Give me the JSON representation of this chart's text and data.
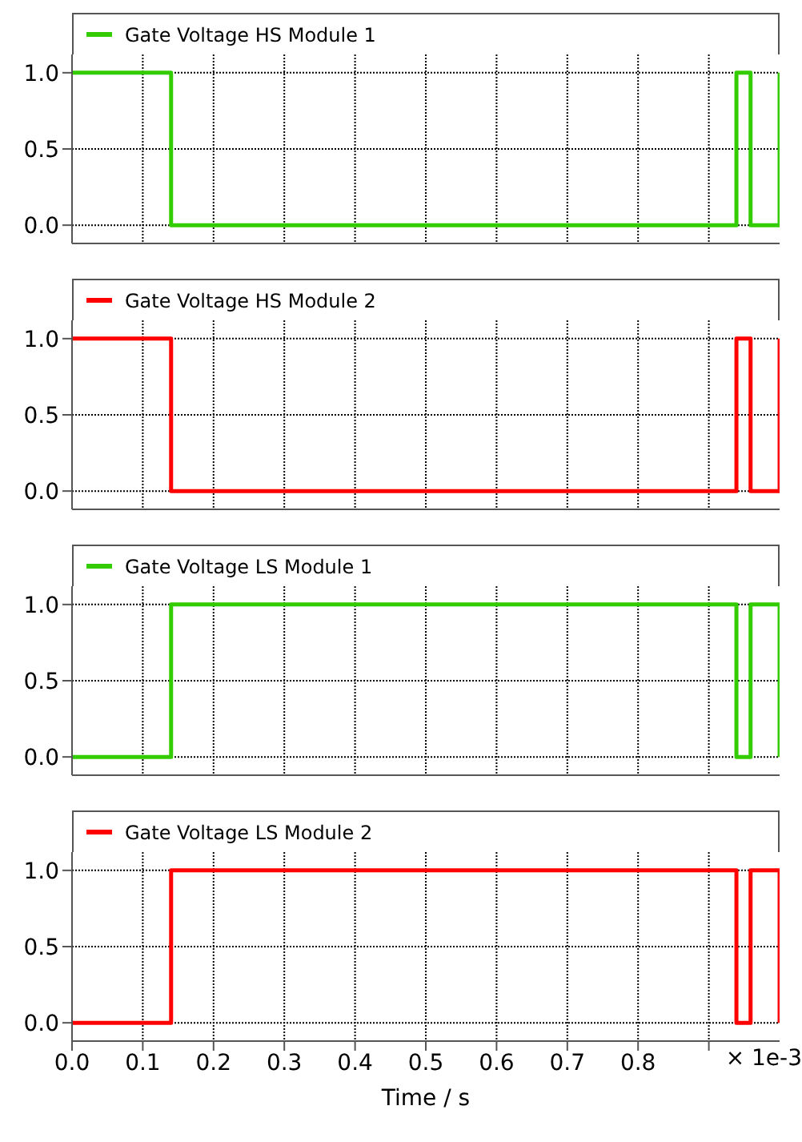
{
  "chart_data": [
    {
      "type": "step",
      "x": [
        0,
        0.14,
        0.939,
        0.959,
        1.0
      ],
      "series": [
        {
          "name": "Gate Voltage HS Module 1",
          "color": "#33cc00",
          "values": [
            1,
            0,
            1,
            0,
            1
          ]
        }
      ],
      "xlim": [
        0,
        1.0
      ],
      "xticks": [
        {
          "value": 0,
          "label": null
        },
        {
          "value": 0.1,
          "label": null
        },
        {
          "value": 0.2,
          "label": null
        },
        {
          "value": 0.3,
          "label": null
        },
        {
          "value": 0.4,
          "label": null
        },
        {
          "value": 0.5,
          "label": null
        },
        {
          "value": 0.6,
          "label": null
        },
        {
          "value": 0.7,
          "label": null
        },
        {
          "value": 0.8,
          "label": null
        },
        {
          "value": 0.9,
          "label": null
        }
      ],
      "ylim": [
        -0.12,
        1.12
      ],
      "yticks": [
        {
          "value": 0,
          "label": "0.0"
        },
        {
          "value": 0.5,
          "label": "0.5"
        },
        {
          "value": 1,
          "label": "1.0"
        }
      ],
      "grid": true,
      "legend": "top",
      "tick_labels": "y"
    },
    {
      "type": "step",
      "x": [
        0,
        0.14,
        0.939,
        0.959,
        1.0
      ],
      "series": [
        {
          "name": "Gate Voltage HS Module 2",
          "color": "#ff0000",
          "values": [
            1,
            0,
            1,
            0,
            1
          ]
        }
      ],
      "xlim": [
        0,
        1.0
      ],
      "xticks": [
        {
          "value": 0,
          "label": null
        },
        {
          "value": 0.1,
          "label": null
        },
        {
          "value": 0.2,
          "label": null
        },
        {
          "value": 0.3,
          "label": null
        },
        {
          "value": 0.4,
          "label": null
        },
        {
          "value": 0.5,
          "label": null
        },
        {
          "value": 0.6,
          "label": null
        },
        {
          "value": 0.7,
          "label": null
        },
        {
          "value": 0.8,
          "label": null
        },
        {
          "value": 0.9,
          "label": null
        }
      ],
      "ylim": [
        -0.12,
        1.12
      ],
      "yticks": [
        {
          "value": 0,
          "label": "0.0"
        },
        {
          "value": 0.5,
          "label": "0.5"
        },
        {
          "value": 1,
          "label": "1.0"
        }
      ],
      "grid": true,
      "legend": "top",
      "tick_labels": "y"
    },
    {
      "type": "step",
      "x": [
        0,
        0.14,
        0.939,
        0.959,
        1.0
      ],
      "series": [
        {
          "name": "Gate Voltage LS Module 1",
          "color": "#33cc00",
          "values": [
            0,
            1,
            0,
            1,
            0
          ]
        }
      ],
      "xlim": [
        0,
        1.0
      ],
      "xticks": [
        {
          "value": 0,
          "label": null
        },
        {
          "value": 0.1,
          "label": null
        },
        {
          "value": 0.2,
          "label": null
        },
        {
          "value": 0.3,
          "label": null
        },
        {
          "value": 0.4,
          "label": null
        },
        {
          "value": 0.5,
          "label": null
        },
        {
          "value": 0.6,
          "label": null
        },
        {
          "value": 0.7,
          "label": null
        },
        {
          "value": 0.8,
          "label": null
        },
        {
          "value": 0.9,
          "label": null
        }
      ],
      "ylim": [
        -0.12,
        1.12
      ],
      "yticks": [
        {
          "value": 0,
          "label": "0.0"
        },
        {
          "value": 0.5,
          "label": "0.5"
        },
        {
          "value": 1,
          "label": "1.0"
        }
      ],
      "grid": true,
      "legend": "top",
      "tick_labels": "y"
    },
    {
      "type": "step",
      "x": [
        0,
        0.14,
        0.939,
        0.959,
        1.0
      ],
      "series": [
        {
          "name": "Gate Voltage LS Module 2",
          "color": "#ff0000",
          "values": [
            0,
            1,
            0,
            1,
            0
          ]
        }
      ],
      "xlim": [
        0,
        1.0
      ],
      "xticks": [
        {
          "value": 0,
          "label": "0.0"
        },
        {
          "value": 0.1,
          "label": "0.1"
        },
        {
          "value": 0.2,
          "label": "0.2"
        },
        {
          "value": 0.3,
          "label": "0.3"
        },
        {
          "value": 0.4,
          "label": "0.4"
        },
        {
          "value": 0.5,
          "label": "0.5"
        },
        {
          "value": 0.6,
          "label": "0.6"
        },
        {
          "value": 0.7,
          "label": "0.7"
        },
        {
          "value": 0.8,
          "label": "0.8"
        },
        {
          "value": 0.9,
          "label": null
        }
      ],
      "ylim": [
        -0.12,
        1.12
      ],
      "yticks": [
        {
          "value": 0,
          "label": "0.0"
        },
        {
          "value": 0.5,
          "label": "0.5"
        },
        {
          "value": 1,
          "label": "1.0"
        }
      ],
      "grid": true,
      "legend": "top",
      "xlabel": "Time / s",
      "annotations": [
        "× 1e-3"
      ]
    }
  ]
}
